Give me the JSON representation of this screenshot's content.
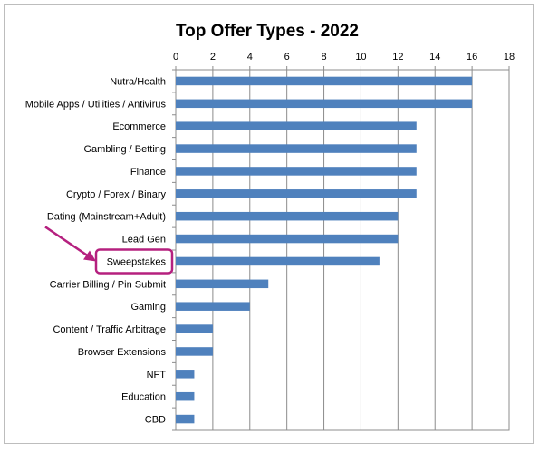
{
  "chart_data": {
    "type": "bar",
    "orientation": "horizontal",
    "title": "Top Offer Types - 2022",
    "categories": [
      "Nutra/Health",
      "Mobile Apps / Utilities / Antivirus",
      "Ecommerce",
      "Gambling / Betting",
      "Finance",
      "Crypto / Forex / Binary",
      "Dating (Mainstream+Adult)",
      "Lead Gen",
      "Sweepstakes",
      "Carrier Billing / Pin Submit",
      "Gaming",
      "Content / Traffic Arbitrage",
      "Browser Extensions",
      "NFT",
      "Education",
      "CBD"
    ],
    "values": [
      16,
      16,
      13,
      13,
      13,
      13,
      12,
      12,
      11,
      5,
      4,
      2,
      2,
      1,
      1,
      1
    ],
    "xlim": [
      0,
      18
    ],
    "xticks": [
      "0",
      "2",
      "4",
      "6",
      "8",
      "10",
      "12",
      "14",
      "16",
      "18"
    ],
    "x_axis_position": "top",
    "grid": true,
    "bar_color": "#4f81bd",
    "highlight": {
      "category": "Sweepstakes",
      "color": "#b5207f"
    }
  }
}
